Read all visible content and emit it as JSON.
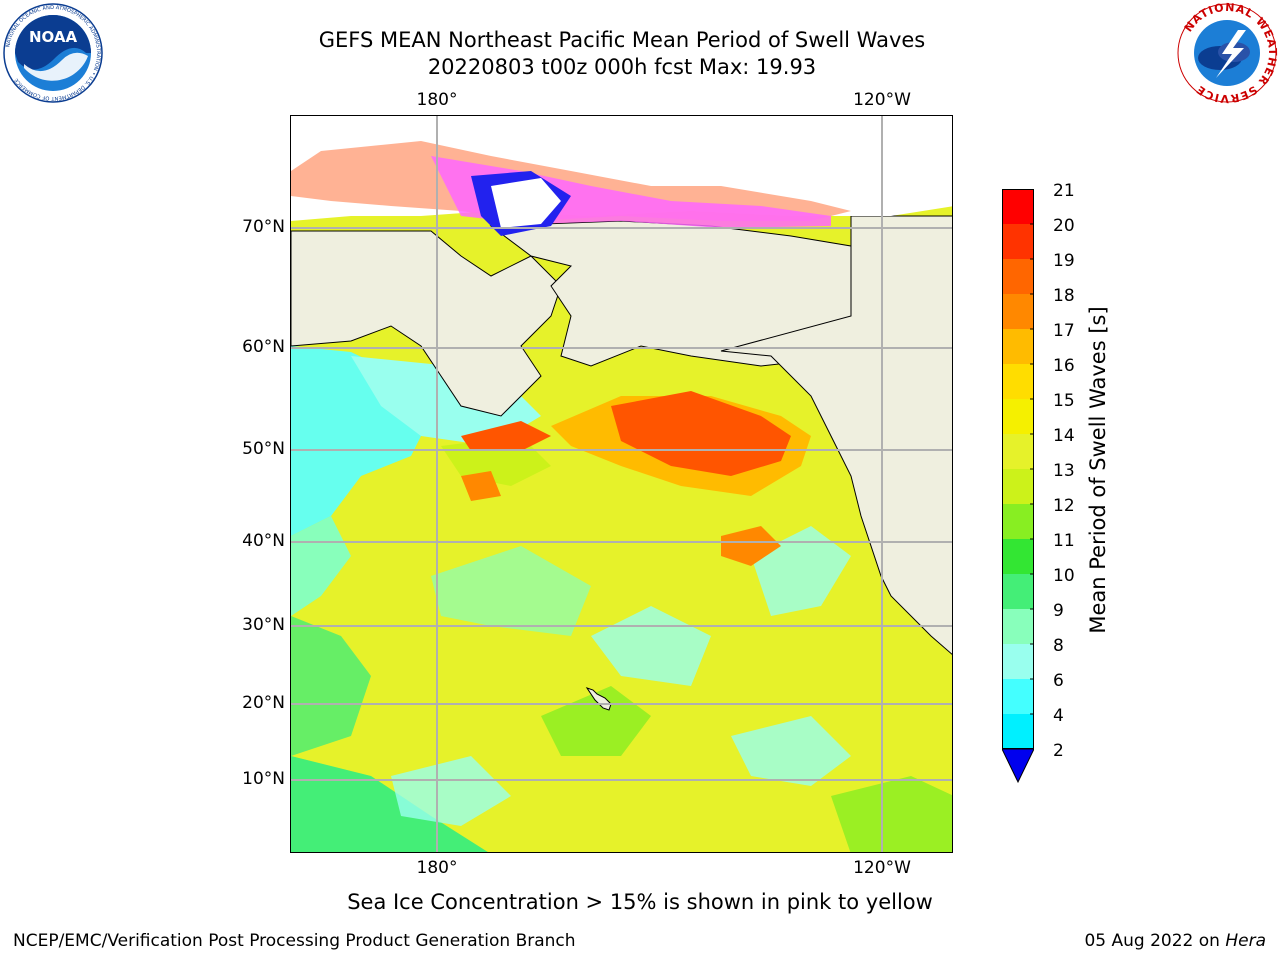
{
  "header": {
    "title_line1": "GEFS MEAN Northeast Pacific Mean Period of Swell Waves",
    "title_line2": "20220803 t00z 000h fcst   Max: 19.93",
    "noaa_logo_text": "NOAA",
    "noaa_ring_text": "NATIONAL OCEANIC AND ATMOSPHERIC ADMINISTRATION • U.S. DEPARTMENT OF COMMERCE",
    "nws_ring_text": "NATIONAL WEATHER SERVICE"
  },
  "map": {
    "lon_labels": [
      "180°",
      "120°W"
    ],
    "lat_labels": [
      "70°N",
      "60°N",
      "50°N",
      "40°N",
      "30°N",
      "20°N",
      "10°N"
    ],
    "ocean_color": "#e6f22a",
    "land_color": "#efefdf"
  },
  "colorbar": {
    "label": "Mean Period of Swell Waves [s]",
    "ticks": [
      "21",
      "20",
      "19",
      "18",
      "17",
      "16",
      "15",
      "14",
      "13",
      "12",
      "11",
      "10",
      "9",
      "8",
      "6",
      "4",
      "2"
    ],
    "colors": [
      "#ff0000",
      "#ff3300",
      "#ff6600",
      "#ff8800",
      "#ffbb00",
      "#ffdd00",
      "#f5f000",
      "#e6f22a",
      "#ccf21a",
      "#88ee22",
      "#33e633",
      "#44ee77",
      "#88ffbb",
      "#99ffee",
      "#44ffff",
      "#00f0ff",
      "#0099ff",
      "#0022ff"
    ],
    "extend_color": "#0000ee"
  },
  "notes": {
    "sea_ice": "Sea Ice Concentration > 15% is shown in pink to yellow"
  },
  "footer": {
    "left": "NCEP/EMC/Verification Post Processing Product Generation Branch",
    "right_date": "05 Aug 2022 on",
    "right_machine": "Hera"
  }
}
